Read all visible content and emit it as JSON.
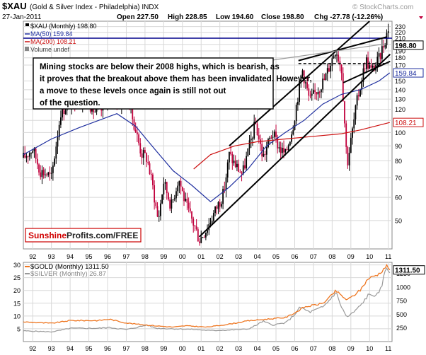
{
  "header": {
    "ticker": "$XAU",
    "name": "(Gold & Silver Index - Philadelphia) INDX",
    "date": "27-Jan-2011",
    "watermark": "© StockCharts.com",
    "open": "Open 227.50",
    "high": "High 228.85",
    "low": "Low 194.60",
    "close": "Close 198.80",
    "chg": "Chg -27.78 (-12.26%)"
  },
  "colors": {
    "up": "#000000",
    "down": "#c0003c",
    "ma50": "#1f2f9f",
    "ma200": "#cc1111",
    "grid": "#d8d8d8",
    "gold": "#ee7722",
    "silver": "#999999",
    "callout_border": "#000000",
    "sunshine": "#d00000",
    "closebox_red": "#cc1111"
  },
  "legend": {
    "xau": "$XAU (Monthly) 198.80",
    "ma50": "MA(50) 159.84",
    "ma200": "MA(200) 108.21",
    "volume": "Volume undef"
  },
  "annotation": "Mining stocks are below their 2008 highs, which is bearish, as it proves that the breakout above them has been invalidated. However, a move to these levels once again is still not out of the question.",
  "branding": {
    "part1": "Sunshine",
    "part2": "Profits.com/FREE"
  },
  "chart_data": [
    {
      "type": "candlestick",
      "title": "$XAU (Gold & Silver Index - Philadelphia) INDX",
      "scale": "log",
      "ylim": [
        40,
        240
      ],
      "xlim": [
        1991.5,
        2011.2
      ],
      "x_tick_labels": [
        "92",
        "93",
        "94",
        "95",
        "96",
        "97",
        "98",
        "99",
        "00",
        "01",
        "02",
        "03",
        "04",
        "05",
        "06",
        "07",
        "08",
        "09",
        "10",
        "11"
      ],
      "x_tick_years": [
        1992,
        1993,
        1994,
        1995,
        1996,
        1997,
        1998,
        1999,
        2000,
        2001,
        2002,
        2003,
        2004,
        2005,
        2006,
        2007,
        2008,
        2009,
        2010,
        2011
      ],
      "y_ticks": [
        50,
        60,
        70,
        80,
        90,
        100,
        110,
        120,
        130,
        140,
        150,
        170,
        180,
        190,
        200,
        210,
        220,
        230
      ],
      "y_tick_labels": [
        "50",
        "60",
        "70",
        "80",
        "90",
        "100",
        "110",
        "120",
        "130",
        "140",
        "150",
        "170",
        "180",
        "190",
        "200",
        "210",
        "220",
        "230"
      ],
      "price_path": [
        [
          1991.5,
          82
        ],
        [
          1992.0,
          88
        ],
        [
          1992.4,
          74
        ],
        [
          1992.8,
          72
        ],
        [
          1993.0,
          70
        ],
        [
          1993.5,
          118
        ],
        [
          1993.9,
          125
        ],
        [
          1994.3,
          128
        ],
        [
          1994.8,
          132
        ],
        [
          1995.3,
          118
        ],
        [
          1995.8,
          120
        ],
        [
          1996.1,
          148
        ],
        [
          1996.6,
          125
        ],
        [
          1997.0,
          135
        ],
        [
          1997.4,
          108
        ],
        [
          1997.8,
          85
        ],
        [
          1998.1,
          82
        ],
        [
          1998.4,
          66
        ],
        [
          1998.7,
          50
        ],
        [
          1999.0,
          68
        ],
        [
          1999.4,
          56
        ],
        [
          1999.8,
          70
        ],
        [
          2000.2,
          56
        ],
        [
          2000.7,
          47
        ],
        [
          2000.9,
          43
        ],
        [
          2001.3,
          47
        ],
        [
          2001.8,
          55
        ],
        [
          2002.2,
          62
        ],
        [
          2002.5,
          84
        ],
        [
          2002.8,
          78
        ],
        [
          2003.2,
          72
        ],
        [
          2003.9,
          108
        ],
        [
          2004.3,
          82
        ],
        [
          2004.8,
          100
        ],
        [
          2005.2,
          88
        ],
        [
          2005.5,
          84
        ],
        [
          2005.9,
          105
        ],
        [
          2006.4,
          165
        ],
        [
          2006.8,
          128
        ],
        [
          2007.2,
          140
        ],
        [
          2007.6,
          152
        ],
        [
          2007.9,
          172
        ],
        [
          2008.2,
          195
        ],
        [
          2008.5,
          165
        ],
        [
          2008.8,
          78
        ],
        [
          2008.9,
          85
        ],
        [
          2009.3,
          125
        ],
        [
          2009.8,
          178
        ],
        [
          2010.1,
          162
        ],
        [
          2010.5,
          178
        ],
        [
          2010.9,
          215
        ],
        [
          2011.0,
          228
        ],
        [
          2011.08,
          198.8
        ]
      ],
      "ma50_path": [
        [
          1991.5,
          84
        ],
        [
          1993,
          95
        ],
        [
          1994.5,
          104
        ],
        [
          1996.5,
          116
        ],
        [
          1997.5,
          105
        ],
        [
          1998.5,
          88
        ],
        [
          1999.5,
          74
        ],
        [
          2000.5,
          66
        ],
        [
          2001.5,
          58
        ],
        [
          2002.5,
          65
        ],
        [
          2003.5,
          75
        ],
        [
          2004.5,
          90
        ],
        [
          2005.5,
          100
        ],
        [
          2006.5,
          110
        ],
        [
          2007.5,
          125
        ],
        [
          2008.5,
          135
        ],
        [
          2009.5,
          140
        ],
        [
          2010.5,
          150
        ],
        [
          2011.08,
          159.84
        ]
      ],
      "ma200_path": [
        [
          2000.6,
          75
        ],
        [
          2001.5,
          84
        ],
        [
          2002.8,
          90
        ],
        [
          2004,
          93
        ],
        [
          2005.5,
          95
        ],
        [
          2007,
          97
        ],
        [
          2008.5,
          99
        ],
        [
          2009.5,
          102
        ],
        [
          2011.08,
          108.21
        ]
      ],
      "trend_lines": [
        {
          "name": "channel-lower",
          "from": [
            2000.9,
            44
          ],
          "to": [
            2011.1,
            185
          ]
        },
        {
          "name": "channel-upper",
          "from": [
            2002.5,
            90
          ],
          "to": [
            2010.0,
            240
          ]
        },
        {
          "name": "resistance-upper",
          "from": [
            2006.2,
            176
          ],
          "to": [
            2010.9,
            212
          ]
        },
        {
          "name": "ma50-support",
          "from": [
            2008.6,
            148
          ],
          "to": [
            2011.1,
            175
          ]
        }
      ],
      "horizontal_levels": [
        {
          "name": "2008-high-line",
          "y": 210,
          "from_x": 1991.5,
          "to_x": 2011.2,
          "style": "solid",
          "color": "#00008b"
        },
        {
          "name": "breakout-level",
          "y": 172,
          "from_x": 2006.2,
          "to_x": 2011.0,
          "style": "dashed",
          "color": "#000000"
        }
      ],
      "value_boxes": [
        {
          "value": "198.80",
          "style": "close"
        },
        {
          "value": "159.84",
          "style": "ma50"
        },
        {
          "value": "108.21",
          "style": "ma200"
        }
      ]
    },
    {
      "type": "line",
      "title": "$GOLD (Monthly) 1311.50 / $SILVER (Monthly) 26.87",
      "xlim": [
        1991.5,
        2011.2
      ],
      "series": [
        {
          "name": "$GOLD (Monthly) 1311.50",
          "axis": "right",
          "points": [
            [
              1991.5,
              360
            ],
            [
              1993,
              335
            ],
            [
              1994,
              385
            ],
            [
              1995.5,
              385
            ],
            [
              1996.1,
              410
            ],
            [
              1997,
              340
            ],
            [
              1998.5,
              290
            ],
            [
              1999.5,
              265
            ],
            [
              2000.2,
              290
            ],
            [
              2001.3,
              265
            ],
            [
              2002.5,
              320
            ],
            [
              2003.5,
              380
            ],
            [
              2004.5,
              410
            ],
            [
              2005.5,
              440
            ],
            [
              2006.5,
              630
            ],
            [
              2007.5,
              700
            ],
            [
              2008.2,
              930
            ],
            [
              2008.8,
              760
            ],
            [
              2009.5,
              940
            ],
            [
              2009.9,
              1150
            ],
            [
              2010.5,
              1240
            ],
            [
              2010.9,
              1390
            ],
            [
              2011.08,
              1311.5
            ]
          ]
        },
        {
          "name": "$SILVER (Monthly) 26.87",
          "axis": "left",
          "points": [
            [
              1991.5,
              4.2
            ],
            [
              1993,
              3.8
            ],
            [
              1994,
              5.2
            ],
            [
              1995.5,
              5.2
            ],
            [
              1996.1,
              5.5
            ],
            [
              1997,
              4.7
            ],
            [
              1998.1,
              6.5
            ],
            [
              1998.6,
              5.2
            ],
            [
              1999.5,
              5.0
            ],
            [
              2000.5,
              4.8
            ],
            [
              2001.5,
              4.3
            ],
            [
              2002.5,
              4.5
            ],
            [
              2003.5,
              4.9
            ],
            [
              2004.3,
              8.0
            ],
            [
              2004.8,
              6.5
            ],
            [
              2005.5,
              7.3
            ],
            [
              2006.3,
              13.5
            ],
            [
              2006.8,
              11.5
            ],
            [
              2007.5,
              13.5
            ],
            [
              2008.2,
              19.5
            ],
            [
              2008.8,
              9.5
            ],
            [
              2009.5,
              14
            ],
            [
              2009.9,
              18
            ],
            [
              2010.5,
              18.5
            ],
            [
              2010.9,
              29.5
            ],
            [
              2011.08,
              26.87
            ]
          ]
        }
      ],
      "left_axis": {
        "ylim": [
          0,
          31
        ],
        "ticks": [
          5,
          10,
          15,
          20,
          25,
          30
        ],
        "tick_labels": [
          "5",
          "10",
          "15",
          "20",
          "25",
          "30"
        ]
      },
      "right_axis": {
        "ylim": [
          0,
          1450
        ],
        "ticks": [
          250,
          500,
          750,
          1000,
          1250
        ],
        "tick_labels": [
          "250",
          "500",
          "750",
          "1000",
          "1250"
        ]
      },
      "x_tick_labels": [
        "92",
        "93",
        "94",
        "95",
        "96",
        "97",
        "98",
        "99",
        "00",
        "01",
        "02",
        "03",
        "04",
        "05",
        "06",
        "07",
        "08",
        "09",
        "10",
        "11"
      ],
      "x_tick_years": [
        1992,
        1993,
        1994,
        1995,
        1996,
        1997,
        1998,
        1999,
        2000,
        2001,
        2002,
        2003,
        2004,
        2005,
        2006,
        2007,
        2008,
        2009,
        2010,
        2011
      ],
      "value_box": "1311.50"
    }
  ]
}
